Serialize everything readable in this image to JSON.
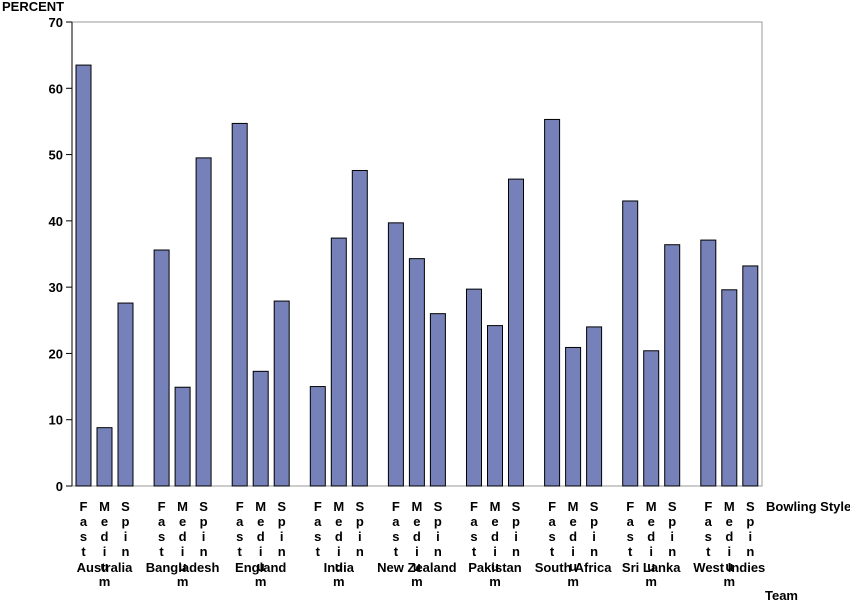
{
  "chart_data": {
    "type": "bar",
    "ylabel": "PERCENT",
    "xlabel_inner": "Bowling Style",
    "xlabel_outer": "Team",
    "ylim": [
      0,
      70
    ],
    "yticks": [
      "0",
      "10",
      "20",
      "30",
      "40",
      "50",
      "60",
      "70"
    ],
    "subcategories": [
      "Fast",
      "Medium",
      "Spin"
    ],
    "bar_color": "#7581b8",
    "groups": [
      {
        "team": "Australia",
        "values": [
          63.5,
          8.8,
          27.6
        ]
      },
      {
        "team": "Bangladesh",
        "values": [
          35.6,
          14.9,
          49.5
        ]
      },
      {
        "team": "England",
        "values": [
          54.7,
          17.3,
          27.9
        ]
      },
      {
        "team": "India",
        "values": [
          15.0,
          37.4,
          47.6
        ]
      },
      {
        "team": "New Zealand",
        "values": [
          39.7,
          34.3,
          26.0
        ]
      },
      {
        "team": "Pakistan",
        "values": [
          29.7,
          24.2,
          46.3
        ]
      },
      {
        "team": "South Africa",
        "values": [
          55.3,
          20.9,
          24.0
        ]
      },
      {
        "team": "Sri Lanka",
        "values": [
          43.0,
          20.4,
          36.4
        ]
      },
      {
        "team": "West Indies",
        "values": [
          37.1,
          29.6,
          33.2
        ]
      }
    ],
    "grid": false,
    "legend": "none"
  }
}
